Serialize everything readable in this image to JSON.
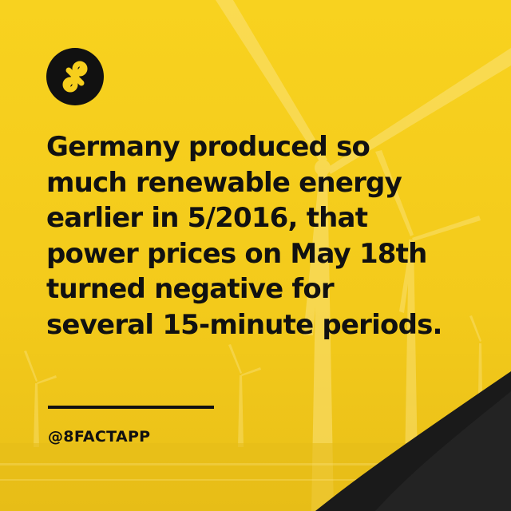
{
  "brand": {
    "logo_icon": "infinity-eight-icon",
    "handle": "@8FACTAPP"
  },
  "fact": {
    "lines": [
      "Germany produced so",
      "much renewable energy",
      "earlier in 5/2016, that",
      "power prices on May 18th",
      "turned negative for",
      "several 15-minute periods."
    ]
  },
  "colors": {
    "background": "#f7cf1d",
    "text": "#111111",
    "corner_wedge": "#1a1a1a"
  },
  "background_image": "wind-turbines-photo"
}
